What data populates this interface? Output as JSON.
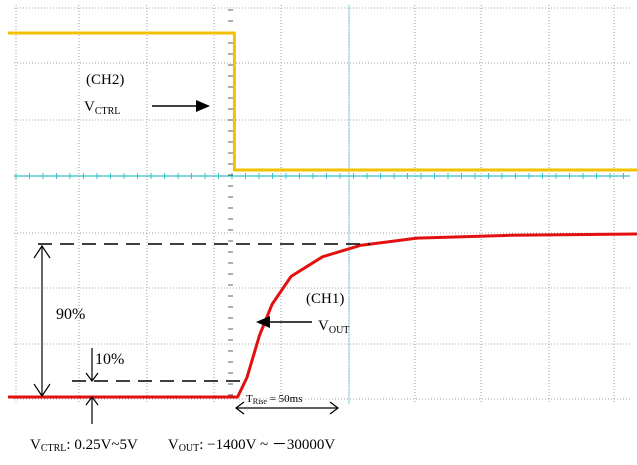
{
  "colors": {
    "ch2_trace": "#f2c200",
    "ch1_trace": "#e31010",
    "grid": "#8a8a8a",
    "center_axis": "#34c0c8"
  },
  "chart_data": {
    "type": "line",
    "title": "",
    "xlabel": "",
    "ylabel": "",
    "grid": true,
    "series": [
      {
        "name": "CH2",
        "label_text": "(CH2)",
        "signal_main": "V",
        "signal_sub": "CTRL",
        "points": [
          [
            0,
            1
          ],
          [
            0.36,
            1
          ],
          [
            0.36,
            0
          ],
          [
            1,
            0
          ]
        ]
      },
      {
        "name": "CH1",
        "label_text": "(CH1)",
        "signal_main": "V",
        "signal_sub": "OUT",
        "points": [
          [
            0,
            0
          ],
          [
            0.365,
            0
          ],
          [
            0.38,
            0.12
          ],
          [
            0.4,
            0.38
          ],
          [
            0.42,
            0.57
          ],
          [
            0.45,
            0.74
          ],
          [
            0.5,
            0.86
          ],
          [
            0.56,
            0.93
          ],
          [
            0.65,
            0.975
          ],
          [
            0.8,
            0.992
          ],
          [
            1,
            1
          ]
        ]
      }
    ],
    "annotations": {
      "pct_90": "90%",
      "pct_10": "10%",
      "rise_main": "T",
      "rise_sub": "Rise",
      "rise_value": " = 50ms"
    }
  },
  "caption": {
    "ctrl_main": "V",
    "ctrl_sub": "CTRL",
    "ctrl_range": ": 0.25V~5V",
    "out_main": "V",
    "out_sub": "OUT",
    "out_range": ": −1400V ~ －30000V"
  }
}
